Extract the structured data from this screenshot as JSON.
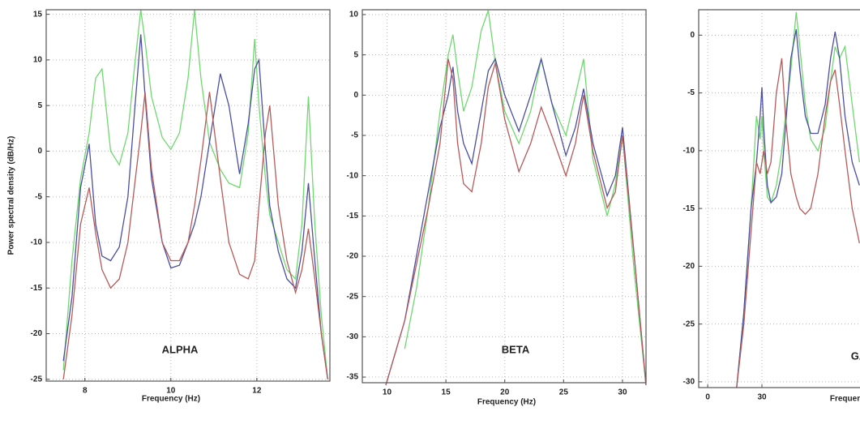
{
  "chart_data": [
    {
      "type": "line",
      "annotation": "ALPHA",
      "xlabel": "Frequency (Hz)",
      "ylabel": "Power spectral density (dB/Hz)",
      "xlim": [
        7.1,
        13.7
      ],
      "ylim": [
        -25.2,
        15.5
      ],
      "xticks": [
        8,
        10,
        12
      ],
      "yticks": [
        -25,
        -20,
        -15,
        -10,
        -5,
        0,
        5,
        10,
        15
      ],
      "grid": true,
      "x": [
        7.5,
        7.7,
        7.9,
        8.1,
        8.25,
        8.4,
        8.6,
        8.8,
        9.0,
        9.15,
        9.3,
        9.4,
        9.55,
        9.8,
        10.0,
        10.2,
        10.4,
        10.55,
        10.7,
        10.9,
        11.15,
        11.35,
        11.6,
        11.8,
        11.95,
        12.05,
        12.2,
        12.3,
        12.5,
        12.7,
        12.9,
        13.05,
        13.2,
        13.35,
        13.5,
        13.65
      ],
      "series": [
        {
          "color": "#6fd86f",
          "values": [
            -24,
            -12,
            -3,
            2,
            8,
            9,
            0,
            -1.5,
            2,
            9,
            15.5,
            12,
            6,
            1.5,
            0.2,
            2,
            8,
            15.5,
            8,
            1,
            -2,
            -3.5,
            -4,
            2,
            12.3,
            5,
            -3,
            -7,
            -10,
            -13,
            -14,
            -8,
            6,
            -8,
            -18,
            -25
          ]
        },
        {
          "color": "#4b4fa0",
          "values": [
            -23,
            -16,
            -4,
            0.8,
            -8,
            -11.5,
            -12,
            -10.5,
            -5,
            4,
            12.8,
            6,
            -3,
            -10,
            -12.8,
            -12.5,
            -10,
            -8,
            -5,
            1,
            8.5,
            5,
            -2.5,
            3,
            9,
            10,
            0,
            -6,
            -11,
            -14,
            -15,
            -11,
            -3.5,
            -12,
            -20,
            -25
          ]
        },
        {
          "color": "#b65a5a",
          "values": [
            -25,
            -18,
            -8,
            -4,
            -9,
            -13,
            -15,
            -14,
            -10,
            -4,
            2,
            6.5,
            -2,
            -10,
            -12,
            -12,
            -10,
            -6,
            -1,
            6.5,
            -3,
            -10,
            -13.5,
            -14,
            -12,
            -6,
            2,
            5,
            -6,
            -12,
            -15.5,
            -13,
            -8.5,
            -14,
            -20,
            -25
          ]
        }
      ]
    },
    {
      "type": "line",
      "annotation": "BETA",
      "xlabel": "Frequency (Hz)",
      "xlim": [
        7.9,
        32
      ],
      "ylim": [
        -35.7,
        10.6
      ],
      "xticks": [
        10,
        15,
        20,
        25,
        30
      ],
      "yticks": [
        -35,
        -30,
        -25,
        -20,
        -15,
        -10,
        -5,
        0,
        5,
        10
      ],
      "grid": true,
      "x": [
        9.9,
        11.5,
        12.5,
        13.5,
        14.5,
        15.2,
        15.6,
        16.0,
        16.5,
        17.2,
        18.0,
        18.6,
        19.2,
        20.0,
        21.2,
        22.2,
        23.1,
        24.0,
        25.2,
        26.0,
        26.7,
        27.5,
        28.7,
        29.4,
        30.0,
        31.0,
        32.0
      ],
      "series": [
        {
          "color": "#6fd86f",
          "values": [
            null,
            -31.5,
            -24,
            -14,
            -2,
            5,
            7.5,
            3,
            -2,
            1,
            8,
            10.5,
            4,
            -2,
            -6,
            -2,
            4.5,
            -1,
            -5,
            0,
            4.5,
            -8,
            -15,
            -11,
            -5,
            -22,
            -36
          ]
        },
        {
          "color": "#4b4fa0",
          "values": [
            -36,
            -28,
            -20,
            -12,
            -4,
            0,
            3.5,
            -2,
            -6,
            -8.5,
            -2,
            3,
            4.5,
            0,
            -4.5,
            0,
            4.5,
            -1,
            -7.5,
            -4,
            0.8,
            -6,
            -12.5,
            -10,
            -4,
            -20,
            -36
          ]
        },
        {
          "color": "#b65a5a",
          "values": [
            -36,
            -28,
            -21,
            -14,
            -6,
            4.5,
            2,
            -6,
            -11,
            -12,
            -6,
            1,
            4,
            -3,
            -9.5,
            -6,
            -1.5,
            -5,
            -10,
            -6,
            0,
            -7,
            -14,
            -12,
            -5,
            -20,
            -36
          ]
        }
      ]
    },
    {
      "type": "line",
      "annotation": "GAMMA",
      "xlabel": "Frequency (Hz)",
      "xlim": [
        -5,
        100
      ],
      "ylim": [
        -30.5,
        2.2
      ],
      "xticks": [
        0,
        30
      ],
      "yticks": [
        -30,
        -25,
        -20,
        -15,
        -10,
        -5,
        0
      ],
      "grid": true,
      "x": [
        16,
        20,
        24,
        27,
        29,
        30,
        31,
        33,
        35,
        38,
        41,
        43,
        46,
        49,
        51,
        54,
        57,
        61,
        65,
        68,
        70.5,
        73,
        76,
        80,
        84
      ],
      "series": [
        {
          "color": "#6fd86f",
          "values": [
            -30.5,
            -24,
            -15,
            -7,
            -9,
            -7,
            -10,
            -14,
            -14.5,
            -13,
            -10,
            -7,
            -3,
            2,
            -1,
            -6,
            -9,
            -10,
            -8,
            -4,
            -1,
            -2,
            -1,
            -6,
            -11
          ]
        },
        {
          "color": "#4b4fa0",
          "values": [
            -30.5,
            -24,
            -15,
            -11,
            -7,
            -4.5,
            -8,
            -13,
            -14.5,
            -14,
            -12,
            -8,
            -2,
            0.5,
            -3,
            -7,
            -8.5,
            -8.5,
            -6,
            -2,
            0.3,
            -2,
            -7,
            -11,
            -13
          ]
        },
        {
          "color": "#b65a5a",
          "values": [
            -30.5,
            -25,
            -17,
            -11,
            -12,
            -11,
            -10,
            -12,
            -11,
            -5,
            -2,
            -7,
            -12,
            -14,
            -15,
            -15.5,
            -15,
            -12,
            -7,
            -4,
            -3,
            -6,
            -10,
            -15,
            -18
          ]
        }
      ]
    }
  ]
}
